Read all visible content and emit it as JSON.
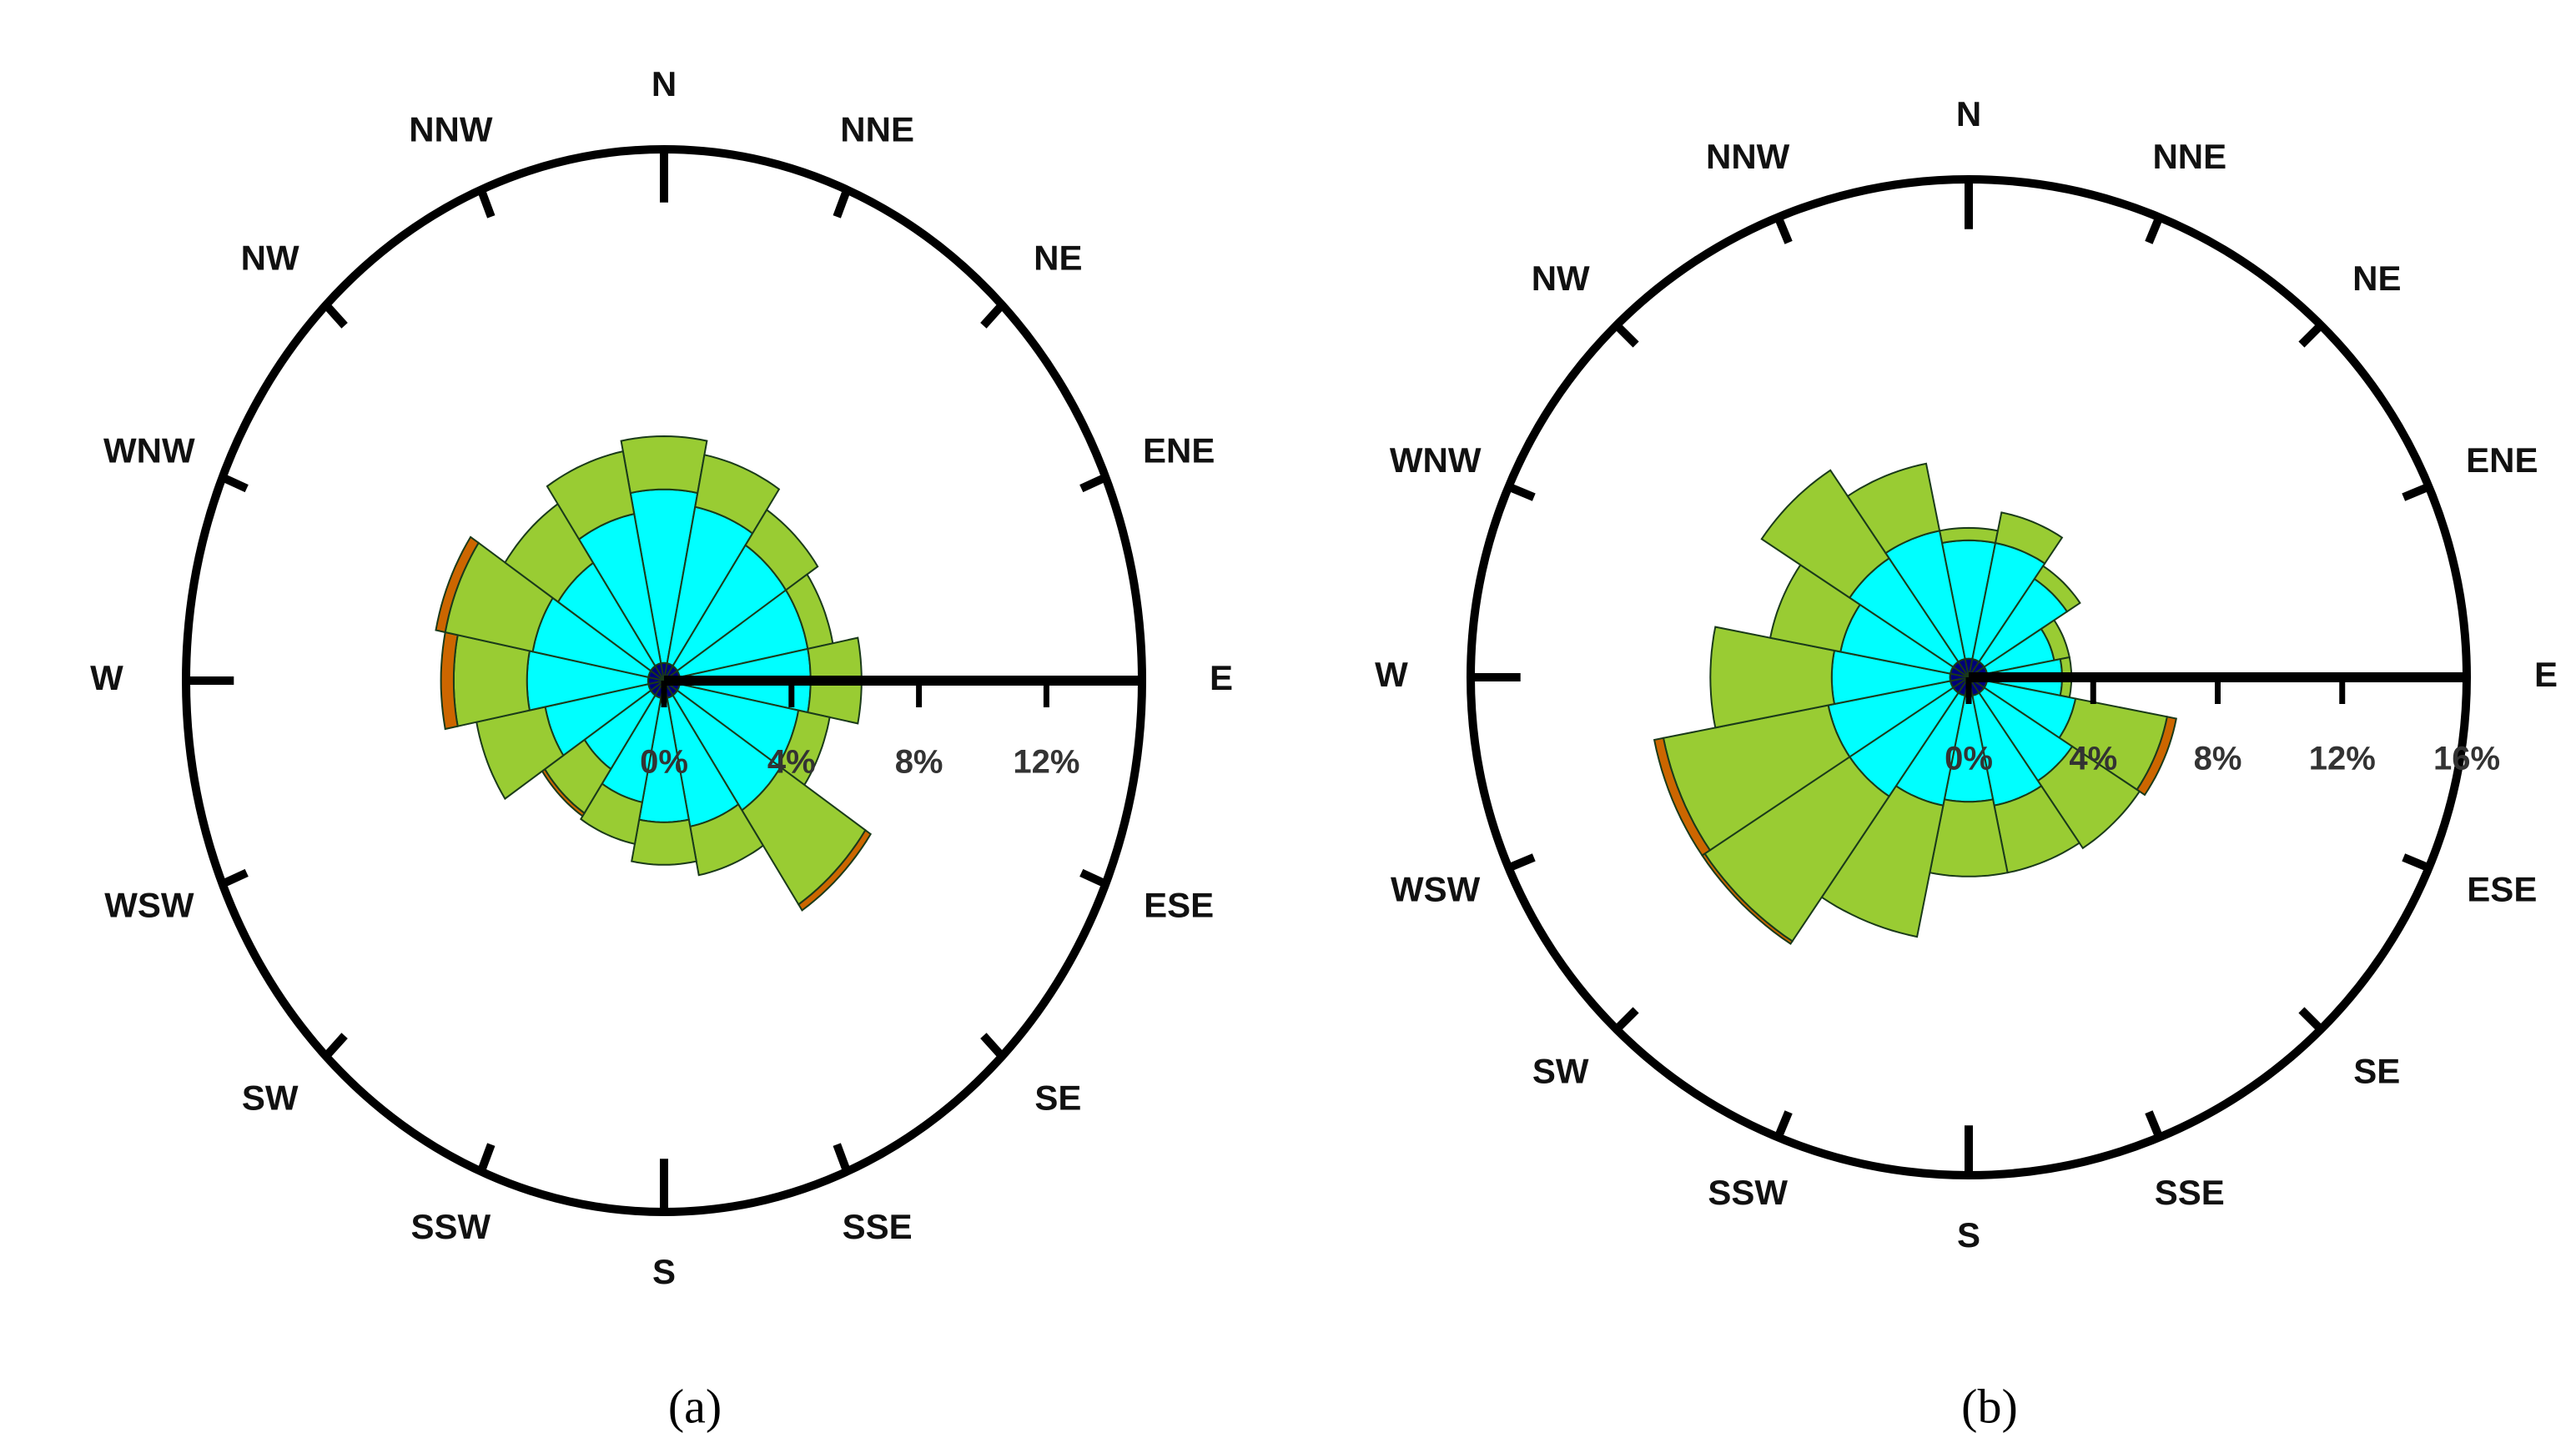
{
  "chart_data": [
    {
      "type": "wind-rose",
      "caption": "(a)",
      "categories": [
        "N",
        "NNE",
        "NE",
        "ENE",
        "E",
        "ESE",
        "SE",
        "SSE",
        "S",
        "SSW",
        "SW",
        "WSW",
        "W",
        "WNW",
        "NW",
        "NNW"
      ],
      "series": [
        {
          "color": "#00007a",
          "values": [
            0.5,
            0.5,
            0.5,
            0.5,
            0.5,
            0.5,
            0.5,
            0.5,
            0.5,
            0.5,
            0.5,
            0.5,
            0.5,
            0.5,
            0.5,
            0.5
          ]
        },
        {
          "color": "#00ffff",
          "values": [
            4.9,
            4.5,
            4.1,
            4.1,
            4.1,
            3.8,
            3.9,
            3.7,
            3.5,
            3.0,
            2.5,
            3.3,
            3.8,
            3.7,
            3.5,
            4.3
          ]
        },
        {
          "color": "#99cc33",
          "values": [
            1.5,
            1.5,
            1.2,
            0.8,
            1.6,
            1.0,
            3.2,
            1.4,
            1.2,
            1.2,
            1.5,
            2.2,
            2.3,
            2.8,
            2.0,
            1.8
          ]
        },
        {
          "color": "#cc6600",
          "values": [
            0,
            0,
            0,
            0,
            0,
            0,
            0.2,
            0,
            0,
            0,
            0.1,
            0,
            0.4,
            0.3,
            0,
            0
          ]
        }
      ],
      "rlim": [
        0,
        15
      ],
      "rticks": [
        {
          "value": 0,
          "label": "0%"
        },
        {
          "value": 4,
          "label": "4%"
        },
        {
          "value": 8,
          "label": "8%"
        },
        {
          "value": 12,
          "label": "12%"
        }
      ]
    },
    {
      "type": "wind-rose",
      "caption": "(b)",
      "categories": [
        "N",
        "NNE",
        "NE",
        "ENE",
        "E",
        "ESE",
        "SE",
        "SSE",
        "S",
        "SSW",
        "SW",
        "WSW",
        "W",
        "WNW",
        "NW",
        "NNW"
      ],
      "series": [
        {
          "color": "#00007a",
          "values": [
            0.6,
            0.6,
            0.6,
            0.6,
            0.6,
            0.6,
            0.6,
            0.6,
            0.6,
            0.6,
            0.6,
            0.6,
            0.6,
            0.6,
            0.6,
            0.6
          ]
        },
        {
          "color": "#00ffff",
          "values": [
            3.8,
            3.8,
            3.2,
            2.2,
            2.4,
            2.9,
            3.4,
            3.6,
            3.4,
            3.6,
            4.0,
            4.0,
            3.8,
            3.6,
            4.0,
            4.2
          ]
        },
        {
          "color": "#99cc33",
          "values": [
            0.4,
            1.0,
            0.5,
            0.5,
            0.3,
            3.0,
            2.6,
            2.2,
            2.4,
            4.3,
            5.6,
            5.4,
            3.9,
            2.3,
            3.4,
            2.2
          ]
        },
        {
          "color": "#cc6600",
          "values": [
            0,
            0,
            0,
            0,
            0,
            0.3,
            0,
            0,
            0,
            0,
            0.1,
            0.3,
            0,
            0,
            0,
            0
          ]
        }
      ],
      "rlim": [
        0,
        16
      ],
      "rticks": [
        {
          "value": 0,
          "label": "0%"
        },
        {
          "value": 4,
          "label": "4%"
        },
        {
          "value": 8,
          "label": "8%"
        },
        {
          "value": 12,
          "label": "12%"
        },
        {
          "value": 16,
          "label": "16%"
        }
      ]
    }
  ]
}
